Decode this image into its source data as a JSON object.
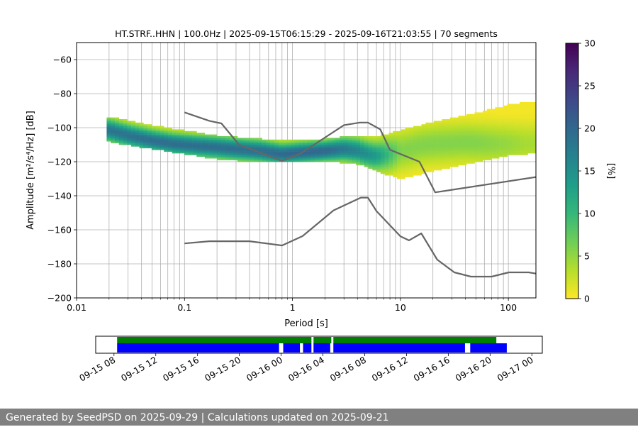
{
  "footer": {
    "text": "Generated by SeedPSD on 2025-09-29 | Calculations updated on 2025-09-21"
  },
  "colors": {
    "grid": "#b0b0b0",
    "noise_model": "#666666",
    "availability_top": "#008000",
    "availability_bottom": "#0000ff",
    "colormap": [
      "#fde725",
      "#b5de2b",
      "#6ece58",
      "#35b779",
      "#1f9e89",
      "#26828e",
      "#31688e",
      "#3e4989",
      "#482878",
      "#440154"
    ]
  },
  "chart_data": [
    {
      "type": "heatmap",
      "title": "HT.STRF..HHN | 100.0Hz | 2025-09-15T06:15:29 - 2025-09-16T21:03:55 | 70 segments",
      "xlabel": "Period [s]",
      "ylabel": "Amplitude [m²/s⁴/Hz] [dB]",
      "x_scale": "log",
      "xlim": [
        0.01,
        180
      ],
      "ylim": [
        -200,
        -50
      ],
      "xticks": [
        0.01,
        0.1,
        1,
        10,
        100
      ],
      "xtick_labels": [
        "0.01",
        "0.1",
        "1",
        "10",
        "100"
      ],
      "yticks": [
        -200,
        -180,
        -160,
        -140,
        -120,
        -100,
        -80,
        -60
      ],
      "ytick_labels": [
        "−200",
        "−180",
        "−160",
        "−140",
        "−120",
        "−100",
        "−80",
        "−60"
      ],
      "grid": true,
      "ppsd_mode_curve": {
        "period": [
          0.02,
          0.03,
          0.05,
          0.08,
          0.12,
          0.2,
          0.3,
          0.5,
          0.8,
          1.2,
          2,
          3,
          4,
          5,
          6,
          8,
          10,
          15,
          20,
          40,
          80,
          150
        ],
        "db": [
          -102,
          -105,
          -108,
          -110,
          -111,
          -112,
          -113,
          -114,
          -116,
          -115,
          -114,
          -113,
          -114,
          -116,
          -117,
          -116,
          -114,
          -111,
          -110,
          -109,
          -110,
          -110
        ]
      },
      "ppsd_spread": {
        "period": [
          0.02,
          0.05,
          0.1,
          0.2,
          0.5,
          1,
          2,
          4,
          6,
          10,
          20,
          50,
          100,
          150
        ],
        "upper_db": [
          -95,
          -100,
          -103,
          -106,
          -108,
          -109,
          -108,
          -106,
          -107,
          -103,
          -98,
          -93,
          -88,
          -86
        ],
        "lower_db": [
          -108,
          -112,
          -115,
          -118,
          -120,
          -120,
          -119,
          -121,
          -125,
          -130,
          -125,
          -120,
          -116,
          -115
        ]
      },
      "new_high_noise_model": {
        "period": [
          0.1,
          0.17,
          0.22,
          0.32,
          0.8,
          1.2,
          3.0,
          4.2,
          5.0,
          6.5,
          8.0,
          15.0,
          21.0,
          180.0
        ],
        "db": [
          -91,
          -96,
          -97.5,
          -110,
          -119.5,
          -115,
          -98.5,
          -97,
          -97,
          -101,
          -113,
          -120,
          -138,
          -129
        ]
      },
      "new_low_noise_model": {
        "period": [
          0.1,
          0.17,
          0.4,
          0.8,
          1.24,
          2.4,
          4.3,
          5.0,
          6.0,
          10.0,
          12.0,
          15.6,
          21.9,
          31.6,
          45.0,
          70.0,
          101.0,
          154.0,
          180.0
        ],
        "db": [
          -168,
          -166.7,
          -166.7,
          -169.2,
          -163.7,
          -148.6,
          -141.1,
          -141.1,
          -149,
          -163.8,
          -166.2,
          -162.1,
          -177.5,
          -185,
          -187.5,
          -187.5,
          -185,
          -185,
          -185.7
        ]
      },
      "colorbar": {
        "label": "[%]",
        "range": [
          0,
          30
        ],
        "ticks": [
          0,
          5,
          10,
          15,
          20,
          25,
          30
        ],
        "tick_labels": [
          "0",
          "5",
          "10",
          "15",
          "20",
          "25",
          "30"
        ]
      }
    },
    {
      "type": "timeline",
      "xlim": [
        "2025-09-15T06:15",
        "2025-09-17T01:00"
      ],
      "xtick_labels": [
        "09-15 08",
        "09-15 12",
        "09-15 16",
        "09-15 20",
        "09-16 00",
        "09-16 04",
        "09-16 08",
        "09-16 12",
        "09-16 16",
        "09-16 20",
        "09-17 00"
      ],
      "xtick_hours": [
        8,
        12,
        16,
        20,
        24,
        28,
        32,
        36,
        40,
        44,
        48
      ],
      "top_segments_hours": [
        [
          8.3,
          26.9
        ],
        [
          27.1,
          28.8
        ],
        [
          29.0,
          44.6
        ]
      ],
      "bottom_segments_hours": [
        [
          8.3,
          23.8
        ],
        [
          24.2,
          25.8
        ],
        [
          26.1,
          26.9
        ],
        [
          27.1,
          28.7
        ],
        [
          29.0,
          41.6
        ],
        [
          42.1,
          45.6
        ]
      ]
    }
  ]
}
